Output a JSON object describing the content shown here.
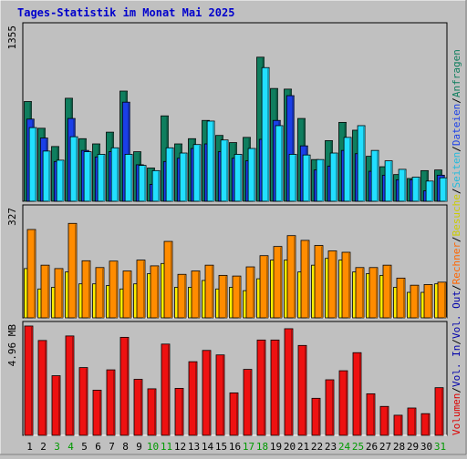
{
  "title": "Tages-Statistik im Monat Mai 2025",
  "colors": {
    "background": "#c0c0c0",
    "plot_background": "#c0c0c0",
    "title": "#0000cc",
    "anfragen": "#0f7e5e",
    "dateien": "#1a3fe8",
    "seiten": "#22dfff",
    "besuche": "#ffee00",
    "rechner": "#ff8c00",
    "volumen": "#ee1111",
    "weekend": "#009900",
    "weekday": "#000000"
  },
  "right_label": {
    "top": [
      {
        "text": "Anfragen",
        "color": "#0f7e5e"
      },
      {
        "text": "/",
        "color": "#000000"
      },
      {
        "text": "Dateien",
        "color": "#1a3fe8"
      },
      {
        "text": "/",
        "color": "#000000"
      },
      {
        "text": "Seiten",
        "color": "#22bbdd"
      },
      {
        "text": "/",
        "color": "#000000"
      },
      {
        "text": "Besuche",
        "color": "#cccc00"
      },
      {
        "text": "/",
        "color": "#000000"
      },
      {
        "text": "Rechner",
        "color": "#ff6600"
      },
      {
        "text": "/",
        "color": "#000000"
      },
      {
        "text": "Vol. Out",
        "color": "#0000aa"
      },
      {
        "text": "/",
        "color": "#000000"
      },
      {
        "text": "Vol. In",
        "color": "#0000aa"
      },
      {
        "text": "/",
        "color": "#000000"
      },
      {
        "text": "Volumen",
        "color": "#dd0000"
      }
    ]
  },
  "chart_data": [
    {
      "type": "bar",
      "panel": "top",
      "max_label": "1355",
      "ylim": [
        0,
        1355
      ],
      "categories": [
        "1",
        "2",
        "3",
        "4",
        "5",
        "6",
        "7",
        "8",
        "9",
        "10",
        "11",
        "12",
        "13",
        "14",
        "15",
        "16",
        "17",
        "18",
        "19",
        "20",
        "21",
        "22",
        "23",
        "24",
        "25",
        "26",
        "27",
        "28",
        "29",
        "30",
        "31"
      ],
      "weekend_days": [
        "3",
        "4",
        "10",
        "11",
        "17",
        "18",
        "24",
        "25",
        "31"
      ],
      "series": [
        {
          "name": "Anfragen",
          "color": "#0f7e5e",
          "values": [
            765,
            560,
            420,
            790,
            480,
            440,
            530,
            845,
            380,
            255,
            655,
            440,
            480,
            620,
            505,
            450,
            490,
            1105,
            865,
            860,
            635,
            320,
            465,
            605,
            545,
            345,
            265,
            205,
            175,
            235,
            240
          ]
        },
        {
          "name": "Dateien",
          "color": "#1a3fe8",
          "values": [
            630,
            485,
            305,
            635,
            390,
            340,
            380,
            760,
            280,
            130,
            305,
            330,
            405,
            440,
            380,
            330,
            310,
            475,
            620,
            810,
            425,
            240,
            270,
            390,
            365,
            230,
            200,
            165,
            165,
            80,
            200
          ]
        },
        {
          "name": "Seiten",
          "color": "#22dfff",
          "values": [
            565,
            385,
            315,
            495,
            380,
            360,
            410,
            360,
            275,
            235,
            410,
            370,
            435,
            615,
            470,
            360,
            405,
            1025,
            580,
            360,
            355,
            320,
            370,
            490,
            580,
            390,
            310,
            245,
            185,
            155,
            180
          ]
        }
      ]
    },
    {
      "type": "bar",
      "panel": "middle",
      "max_label": "327",
      "ylim": [
        0,
        327
      ],
      "categories": [
        "1",
        "2",
        "3",
        "4",
        "5",
        "6",
        "7",
        "8",
        "9",
        "10",
        "11",
        "12",
        "13",
        "14",
        "15",
        "16",
        "17",
        "18",
        "19",
        "20",
        "21",
        "22",
        "23",
        "24",
        "25",
        "26",
        "27",
        "28",
        "29",
        "30",
        "31"
      ],
      "series": [
        {
          "name": "Besuche",
          "color": "#ffee00",
          "values": [
            145,
            85,
            90,
            135,
            100,
            100,
            95,
            85,
            100,
            130,
            160,
            90,
            90,
            110,
            85,
            90,
            80,
            115,
            170,
            170,
            135,
            155,
            175,
            170,
            135,
            130,
            125,
            90,
            75,
            75,
            100
          ]
        },
        {
          "name": "Rechner",
          "color": "#ff8c00",
          "values": [
            260,
            155,
            145,
            278,
            168,
            148,
            167,
            138,
            170,
            153,
            225,
            128,
            138,
            155,
            125,
            123,
            150,
            183,
            210,
            242,
            228,
            213,
            197,
            193,
            148,
            148,
            155,
            117,
            96,
            98,
            105
          ]
        }
      ]
    },
    {
      "type": "bar",
      "panel": "bottom",
      "max_label": "4.96 MB",
      "ylim": [
        0,
        4.96
      ],
      "categories": [
        "1",
        "2",
        "3",
        "4",
        "5",
        "6",
        "7",
        "8",
        "9",
        "10",
        "11",
        "12",
        "13",
        "14",
        "15",
        "16",
        "17",
        "18",
        "19",
        "20",
        "21",
        "22",
        "23",
        "24",
        "25",
        "26",
        "27",
        "28",
        "29",
        "30",
        "31"
      ],
      "series": [
        {
          "name": "Volumen",
          "color": "#ee1111",
          "values": [
            4.84,
            4.2,
            2.64,
            4.4,
            3.0,
            2.0,
            2.9,
            4.34,
            2.48,
            2.06,
            4.04,
            2.08,
            3.26,
            3.76,
            3.56,
            1.88,
            2.92,
            4.22,
            4.22,
            4.72,
            3.98,
            1.64,
            2.46,
            2.86,
            3.66,
            1.84,
            1.28,
            0.89,
            1.21,
            0.96,
            2.11
          ]
        }
      ]
    }
  ]
}
